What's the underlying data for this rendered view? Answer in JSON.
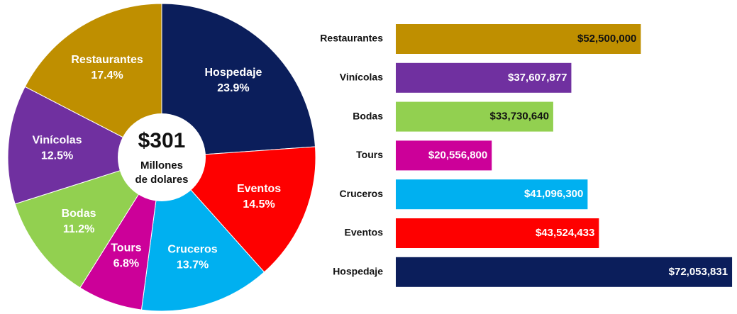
{
  "chart_data": [
    {
      "type": "pie",
      "categories": [
        "Hospedaje",
        "Eventos",
        "Cruceros",
        "Tours",
        "Bodas",
        "Vinícolas",
        "Restaurantes"
      ],
      "values": [
        23.9,
        14.5,
        13.7,
        6.8,
        11.2,
        12.5,
        17.4
      ],
      "value_labels": [
        "23.9%",
        "14.5%",
        "13.7%",
        "6.8%",
        "11.2%",
        "12.5%",
        "17.4%"
      ],
      "colors": [
        "#0b1e5b",
        "#fe0000",
        "#00b0f0",
        "#cc0099",
        "#92d050",
        "#7030a0",
        "#bf8f00"
      ],
      "center_value": "$301",
      "center_lines": [
        "Millones",
        "de dolares"
      ]
    },
    {
      "type": "bar",
      "categories": [
        "Restaurantes",
        "Vinícolas",
        "Bodas",
        "Tours",
        "Cruceros",
        "Eventos",
        "Hospedaje"
      ],
      "values": [
        52500000,
        37607877,
        33730640,
        20556800,
        41096300,
        43524433,
        72053831
      ],
      "value_labels": [
        "$52,500,000",
        "$37,607,877",
        "$33,730,640",
        "$20,556,800",
        "$41,096,300",
        "$43,524,433",
        "$72,053,831"
      ],
      "colors": [
        "#bf8f00",
        "#7030a0",
        "#92d050",
        "#cc0099",
        "#00b0f0",
        "#fe0000",
        "#0b1e5b"
      ],
      "xlim": [
        0,
        72500000
      ]
    }
  ]
}
